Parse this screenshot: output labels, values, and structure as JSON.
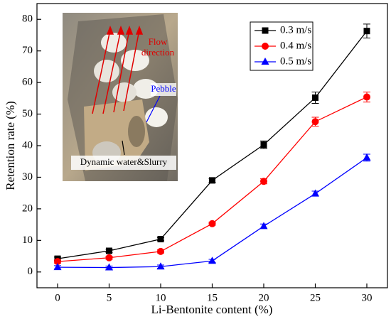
{
  "chart_data": {
    "type": "line",
    "x_label": "Li-Bentonite content (%)",
    "y_label": "Retention rate (%)",
    "x": [
      0,
      5,
      10,
      15,
      20,
      25,
      30
    ],
    "xlim": [
      -2,
      32
    ],
    "xticks": [
      0,
      5,
      10,
      15,
      20,
      25,
      30
    ],
    "ylim": [
      -5,
      85
    ],
    "yticks": [
      0,
      10,
      20,
      30,
      40,
      50,
      60,
      70,
      80
    ],
    "legend": "upper right",
    "series": [
      {
        "name": "0.3 m/s",
        "color": "#000000",
        "marker": "square",
        "values": [
          4.2,
          6.7,
          10.4,
          29.0,
          40.3,
          55.2,
          76.3
        ],
        "errors": [
          0.5,
          0.5,
          0.5,
          0.6,
          1.2,
          1.8,
          2.2
        ]
      },
      {
        "name": "0.4 m/s",
        "color": "#ff0000",
        "marker": "circle",
        "values": [
          3.3,
          4.5,
          6.5,
          15.3,
          28.7,
          47.6,
          55.4
        ],
        "errors": [
          0.5,
          0.5,
          0.5,
          0.5,
          0.8,
          1.4,
          1.6
        ]
      },
      {
        "name": "0.5 m/s",
        "color": "#0000ff",
        "marker": "triangle",
        "values": [
          1.5,
          1.4,
          1.7,
          3.5,
          14.5,
          24.8,
          36.2
        ],
        "errors": [
          0.5,
          0.5,
          0.5,
          0.5,
          0.7,
          0.8,
          1.1
        ]
      }
    ],
    "inset_labels": [
      "Flow",
      "direction",
      "Pebble",
      "Dynamic water&Slurry"
    ]
  }
}
